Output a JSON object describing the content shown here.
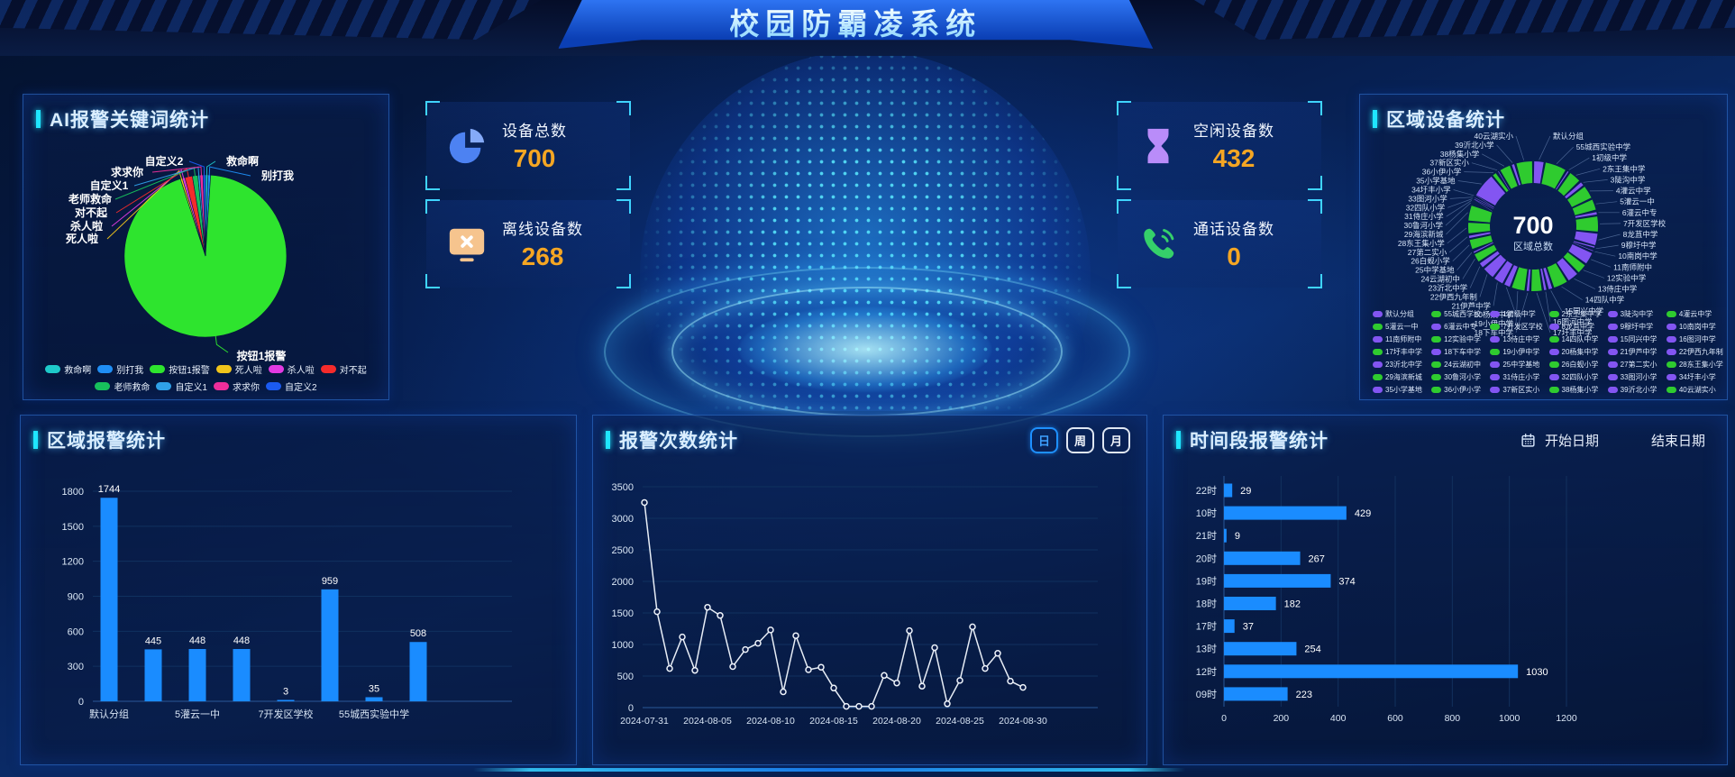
{
  "header": {
    "title": "校园防霸凌系统"
  },
  "theme": {
    "accent_cyan": "#1fe6ff",
    "bar_blue": "#1a8cff",
    "value_orange": "#f5a623",
    "donut_green": "#2fcb2f",
    "donut_purple": "#8355f2",
    "line_white": "#e7edf6"
  },
  "stats": [
    {
      "label": "设备总数",
      "value": "700",
      "icon": "pie-chart-icon"
    },
    {
      "label": "离线设备数",
      "value": "268",
      "icon": "offline-monitor-icon"
    },
    {
      "label": "空闲设备数",
      "value": "432",
      "icon": "hourglass-icon"
    },
    {
      "label": "通话设备数",
      "value": "0",
      "icon": "phone-icon"
    }
  ],
  "panels": {
    "keyword": {
      "title": "AI报警关键词统计"
    },
    "region_device": {
      "title": "区域设备统计",
      "center_value": "700",
      "center_label": "区域总数"
    },
    "region_alarm": {
      "title": "区域报警统计"
    },
    "alarm_count": {
      "title": "报警次数统计",
      "buttons": [
        "日",
        "周",
        "月"
      ],
      "active_button": "日"
    },
    "time_alarm": {
      "title": "时间段报警统计",
      "start_date_label": "开始日期",
      "end_date_label": "结束日期"
    }
  },
  "chart_data": [
    {
      "type": "pie",
      "title": "AI报警关键词统计",
      "note": "values are estimated percentages read from slice angles",
      "items": [
        {
          "name": "救命啊",
          "value": 0.5,
          "color": "#1ec9c9"
        },
        {
          "name": "别打我",
          "value": 0.5,
          "color": "#1f8ef5"
        },
        {
          "name": "按钮1报警",
          "value": 94.0,
          "color": "#2ee42e"
        },
        {
          "name": "死人啦",
          "value": 0.4,
          "color": "#f0c41b"
        },
        {
          "name": "杀人啦",
          "value": 0.5,
          "color": "#e23ae2"
        },
        {
          "name": "对不起",
          "value": 1.5,
          "color": "#f52b2b"
        },
        {
          "name": "老师救命",
          "value": 1.1,
          "color": "#17c05c"
        },
        {
          "name": "自定义1",
          "value": 0.4,
          "color": "#2fa0e8"
        },
        {
          "name": "求求你",
          "value": 0.6,
          "color": "#ee2e9b"
        },
        {
          "name": "自定义2",
          "value": 0.5,
          "color": "#1b5bf0"
        }
      ],
      "legend_order": [
        "救命啊",
        "别打我",
        "按钮1报警",
        "死人啦",
        "杀人啦",
        "对不起",
        "老师救命",
        "自定义1",
        "求求你",
        "自定义2"
      ]
    },
    {
      "type": "donut",
      "title": "区域设备统计",
      "center_value": 700,
      "center_label": "区域总数",
      "note": "segment values estimated from arc lengths; total equals displayed 700",
      "items": [
        {
          "name": "默认分组",
          "value": 20,
          "color": "#8355f2"
        },
        {
          "name": "55城西实验中学",
          "legend": "55城西学校",
          "value": 40,
          "color": "#2fcb2f"
        },
        {
          "name": "1初级中学",
          "value": 6,
          "color": "#8355f2"
        },
        {
          "name": "2东王集中学",
          "value": 24,
          "color": "#2fcb2f"
        },
        {
          "name": "3陡沟中学",
          "value": 10,
          "color": "#8355f2"
        },
        {
          "name": "4灌云中学",
          "value": 26,
          "color": "#2fcb2f"
        },
        {
          "name": "5灌云一中",
          "value": 22,
          "color": "#2fcb2f"
        },
        {
          "name": "6灌云中专",
          "value": 8,
          "color": "#8355f2"
        },
        {
          "name": "7开发区学校",
          "value": 30,
          "color": "#2fcb2f"
        },
        {
          "name": "8龙苴中学",
          "value": 24,
          "color": "#8355f2"
        },
        {
          "name": "9穆圩中学",
          "value": 6,
          "color": "#8355f2"
        },
        {
          "name": "10南岗中学",
          "value": 5,
          "color": "#8355f2"
        },
        {
          "name": "11南师附中",
          "value": 24,
          "color": "#8355f2"
        },
        {
          "name": "12实验中学",
          "value": 20,
          "color": "#2fcb2f"
        },
        {
          "name": "13侍庄中学",
          "value": 22,
          "color": "#8355f2"
        },
        {
          "name": "14四队中学",
          "value": 28,
          "color": "#2fcb2f"
        },
        {
          "name": "15同兴中学",
          "value": 10,
          "color": "#8355f2"
        },
        {
          "name": "16图河中学",
          "value": 8,
          "color": "#8355f2"
        },
        {
          "name": "17圩丰中学",
          "value": 22,
          "color": "#2fcb2f"
        },
        {
          "name": "18下车中学",
          "value": 8,
          "color": "#8355f2"
        },
        {
          "name": "19小伊中学",
          "value": 26,
          "color": "#2fcb2f"
        },
        {
          "name": "20杨集中学",
          "value": 14,
          "color": "#8355f2"
        },
        {
          "name": "21伊芦中学",
          "value": 20,
          "color": "#8355f2"
        },
        {
          "name": "22伊西九年制",
          "value": 24,
          "color": "#8355f2"
        },
        {
          "name": "23沂北中学",
          "value": 12,
          "color": "#8355f2"
        },
        {
          "name": "24云湖初中",
          "value": 18,
          "color": "#2fcb2f"
        },
        {
          "name": "25中学基地",
          "value": 6,
          "color": "#8355f2"
        },
        {
          "name": "26白蚬小学",
          "value": 20,
          "color": "#2fcb2f"
        },
        {
          "name": "27第二实小",
          "value": 8,
          "color": "#8355f2"
        },
        {
          "name": "28东王集小学",
          "value": 22,
          "color": "#2fcb2f"
        },
        {
          "name": "29海滨新城",
          "value": 30,
          "color": "#2fcb2f"
        },
        {
          "name": "30鲁河小学",
          "value": 4,
          "color": "#2fcb2f"
        },
        {
          "name": "31侍庄小学",
          "value": 3,
          "color": "#8355f2"
        },
        {
          "name": "32四队小学",
          "value": 3,
          "color": "#8355f2"
        },
        {
          "name": "33图河小学",
          "value": 3,
          "color": "#8355f2"
        },
        {
          "name": "34圩丰小学",
          "value": 3,
          "color": "#8355f2"
        },
        {
          "name": "35小学基地",
          "value": 45,
          "color": "#8355f2"
        },
        {
          "name": "36小伊小学",
          "value": 10,
          "color": "#2fcb2f"
        },
        {
          "name": "37新区实小",
          "value": 5,
          "color": "#8355f2"
        },
        {
          "name": "38杨集小学",
          "value": 22,
          "color": "#2fcb2f"
        },
        {
          "name": "39沂北小学",
          "value": 8,
          "color": "#8355f2"
        },
        {
          "name": "40云湖实小",
          "value": 31,
          "color": "#2fcb2f"
        }
      ]
    },
    {
      "type": "bar",
      "title": "区域报警统计",
      "categories": [
        "默认分组",
        "",
        "5灌云一中",
        "",
        "7开发区学校",
        "",
        "55城西实验中学",
        ""
      ],
      "values": [
        1744,
        445,
        448,
        448,
        3,
        959,
        35,
        508
      ],
      "ylim": [
        0,
        1800
      ],
      "yticks": [
        0,
        300,
        600,
        900,
        1200,
        1500,
        1800
      ],
      "bar_color": "#1a8cff"
    },
    {
      "type": "line",
      "title": "报警次数统计",
      "x_tick_labels": [
        "2024-07-31",
        "2024-08-05",
        "2024-08-10",
        "2024-08-15",
        "2024-08-20",
        "2024-08-25",
        "2024-08-30"
      ],
      "note": "31 daily points 2024-07-31 .. 2024-08-30, values estimated from plot",
      "values": [
        3250,
        1520,
        620,
        1120,
        590,
        1590,
        1460,
        650,
        920,
        1020,
        1230,
        250,
        1140,
        600,
        640,
        310,
        20,
        20,
        20,
        510,
        390,
        1220,
        340,
        950,
        60,
        430,
        1280,
        620,
        860,
        420,
        320
      ],
      "ylim": [
        0,
        3500
      ],
      "yticks": [
        0,
        500,
        1000,
        1500,
        2000,
        2500,
        3000,
        3500
      ],
      "line_color": "#e7edf6"
    },
    {
      "type": "hbar",
      "title": "时间段报警统计",
      "categories": [
        "22时",
        "10时",
        "21时",
        "20时",
        "19时",
        "18时",
        "17时",
        "13时",
        "12时",
        "09时"
      ],
      "values": [
        29,
        429,
        9,
        267,
        374,
        182,
        37,
        254,
        1030,
        223
      ],
      "xlim": [
        0,
        1200
      ],
      "xticks": [
        0,
        200,
        400,
        600,
        800,
        1000,
        1200
      ],
      "bar_color": "#1a8cff"
    }
  ]
}
